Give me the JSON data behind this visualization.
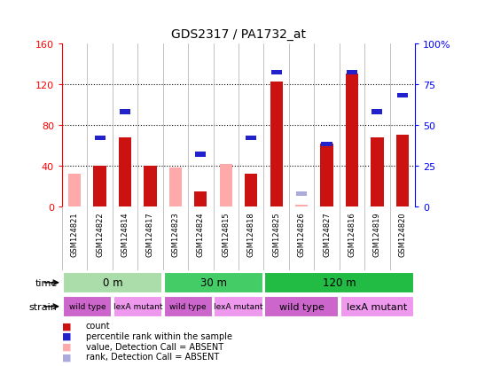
{
  "title": "GDS2317 / PA1732_at",
  "samples": [
    "GSM124821",
    "GSM124822",
    "GSM124814",
    "GSM124817",
    "GSM124823",
    "GSM124824",
    "GSM124815",
    "GSM124818",
    "GSM124825",
    "GSM124826",
    "GSM124827",
    "GSM124816",
    "GSM124819",
    "GSM124820"
  ],
  "count": [
    null,
    40,
    68,
    40,
    null,
    15,
    null,
    32,
    122,
    null,
    62,
    130,
    68,
    70
  ],
  "count_absent": [
    32,
    null,
    null,
    null,
    38,
    null,
    42,
    null,
    null,
    2,
    null,
    null,
    null,
    null
  ],
  "percentile": [
    null,
    42,
    58,
    null,
    null,
    32,
    null,
    42,
    82,
    null,
    38,
    82,
    58,
    68
  ],
  "percentile_absent": [
    null,
    null,
    null,
    null,
    null,
    null,
    null,
    null,
    null,
    8,
    null,
    null,
    null,
    null
  ],
  "time_groups": [
    {
      "label": "0 m",
      "start": 0,
      "end": 4,
      "color": "#aaddaa"
    },
    {
      "label": "30 m",
      "start": 4,
      "end": 8,
      "color": "#44cc66"
    },
    {
      "label": "120 m",
      "start": 8,
      "end": 14,
      "color": "#22bb44"
    }
  ],
  "strain_groups": [
    {
      "label": "wild type",
      "start": 0,
      "end": 2,
      "color": "#cc66cc"
    },
    {
      "label": "lexA mutant",
      "start": 2,
      "end": 4,
      "color": "#ee99ee"
    },
    {
      "label": "wild type",
      "start": 4,
      "end": 6,
      "color": "#cc66cc"
    },
    {
      "label": "lexA mutant",
      "start": 6,
      "end": 8,
      "color": "#ee99ee"
    },
    {
      "label": "wild type",
      "start": 8,
      "end": 11,
      "color": "#cc66cc"
    },
    {
      "label": "lexA mutant",
      "start": 11,
      "end": 14,
      "color": "#ee99ee"
    }
  ],
  "ylim_left": [
    0,
    160
  ],
  "ylim_right": [
    0,
    100
  ],
  "yticks_left": [
    0,
    40,
    80,
    120,
    160
  ],
  "yticks_right": [
    0,
    25,
    50,
    75,
    100
  ],
  "count_color": "#cc1111",
  "count_absent_color": "#ffaaaa",
  "percentile_color": "#2222cc",
  "percentile_absent_color": "#aaaadd",
  "legend_items": [
    {
      "color": "#cc1111",
      "label": "count"
    },
    {
      "color": "#2222cc",
      "label": "percentile rank within the sample"
    },
    {
      "color": "#ffaaaa",
      "label": "value, Detection Call = ABSENT"
    },
    {
      "color": "#aaaadd",
      "label": "rank, Detection Call = ABSENT"
    }
  ]
}
